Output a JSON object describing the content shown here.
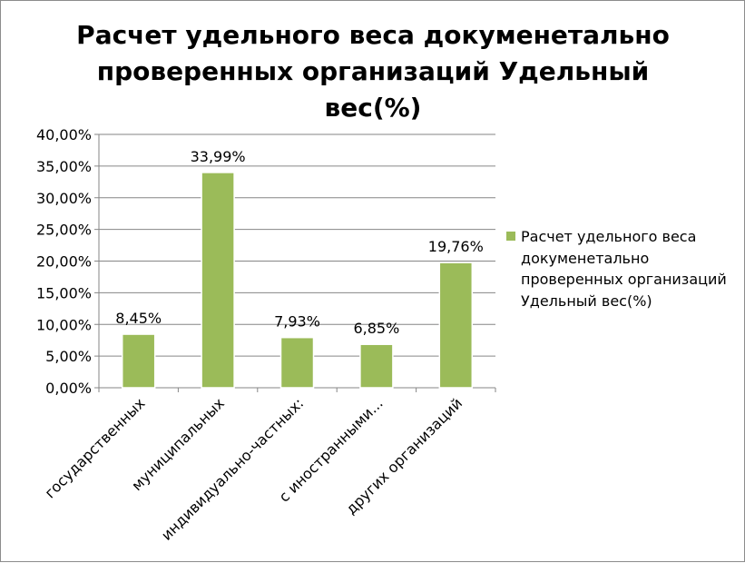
{
  "chart_data": {
    "type": "bar",
    "title": "Расчет удельного веса докуменетально проверенных организаций Удельный вес(%)",
    "categories": [
      "государственных",
      "муниципальных",
      "индивидуально-частных:",
      "с иностранными...",
      "других организаций"
    ],
    "series": [
      {
        "name": "Расчет удельного веса докуменетально проверенных организаций Удельный вес(%)",
        "values": [
          8.45,
          33.99,
          7.93,
          6.85,
          19.76
        ]
      }
    ],
    "data_labels": [
      "8,45%",
      "33,99%",
      "7,93%",
      "6,85%",
      "19,76%"
    ],
    "y_ticks": [
      "0,00%",
      "5,00%",
      "10,00%",
      "15,00%",
      "20,00%",
      "25,00%",
      "30,00%",
      "35,00%",
      "40,00%"
    ],
    "ylim": [
      0,
      40
    ],
    "grid": true,
    "legend_position": "right",
    "bar_color": "#9bbb59",
    "bar_edge_color": "#ffffff"
  }
}
